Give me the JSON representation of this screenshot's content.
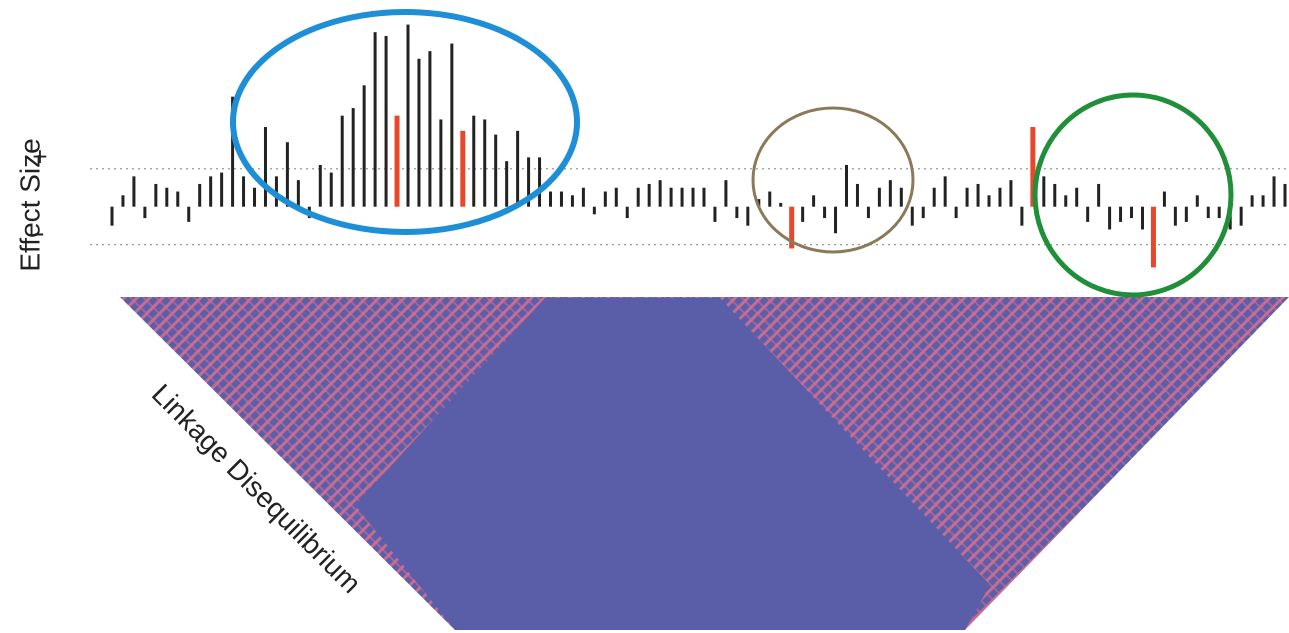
{
  "chart_data": {
    "type": "bar",
    "ylabel": "Effect Size",
    "heatmap_label": "Linkage Disequilibrium",
    "values": [
      -0.5,
      0.3,
      0.8,
      -0.3,
      0.6,
      0.5,
      0.4,
      -0.4,
      0.6,
      0.8,
      0.9,
      2.9,
      0.8,
      0.5,
      2.1,
      0.8,
      1.7,
      0.7,
      -0.3,
      1.1,
      0.9,
      2.4,
      2.6,
      3.2,
      4.6,
      4.5,
      2.4,
      4.8,
      3.9,
      4.1,
      2.3,
      4.3,
      2.0,
      2.4,
      2.3,
      1.9,
      1.2,
      2.0,
      1.3,
      1.3,
      0.4,
      0.4,
      0.3,
      0.5,
      -0.2,
      0.4,
      0.5,
      -0.3,
      0.5,
      0.6,
      0.7,
      0.5,
      0.5,
      0.5,
      0.5,
      -0.4,
      0.7,
      -0.3,
      -0.5,
      0.2,
      0.4,
      0.1,
      -1.1,
      -0.4,
      0.3,
      -0.3,
      -0.7,
      1.1,
      0.6,
      -0.3,
      0.5,
      0.7,
      0.5,
      -0.5,
      -0.3,
      0.5,
      0.8,
      -0.3,
      0.5,
      0.6,
      0.3,
      0.5,
      0.7,
      -0.5,
      2.1,
      0.8,
      0.6,
      0.3,
      0.5,
      -0.4,
      0.6,
      -0.6,
      -0.4,
      -0.3,
      -0.6,
      -1.6,
      0.4,
      -0.5,
      -0.4,
      0.3,
      -0.3,
      -0.3,
      -0.6,
      -0.5,
      0.3,
      0.3,
      0.8,
      0.6
    ],
    "colors": [
      "#222",
      "#222",
      "#222",
      "#222",
      "#222",
      "#222",
      "#222",
      "#222",
      "#222",
      "#222",
      "#222",
      "#222",
      "#222",
      "#222",
      "#222",
      "#222",
      "#222",
      "#222",
      "#222",
      "#222",
      "#222",
      "#222",
      "#222",
      "#222",
      "#222",
      "#222",
      "#e8472a",
      "#222",
      "#222",
      "#222",
      "#222",
      "#222",
      "#e8472a",
      "#222",
      "#222",
      "#222",
      "#222",
      "#222",
      "#222",
      "#222",
      "#222",
      "#222",
      "#222",
      "#222",
      "#222",
      "#222",
      "#222",
      "#222",
      "#222",
      "#222",
      "#222",
      "#222",
      "#222",
      "#222",
      "#222",
      "#222",
      "#222",
      "#222",
      "#222",
      "#222",
      "#222",
      "#222",
      "#e8472a",
      "#222",
      "#222",
      "#222",
      "#222",
      "#222",
      "#222",
      "#222",
      "#222",
      "#222",
      "#222",
      "#222",
      "#222",
      "#222",
      "#222",
      "#222",
      "#222",
      "#222",
      "#222",
      "#222",
      "#222",
      "#222",
      "#e8472a",
      "#222",
      "#222",
      "#222",
      "#222",
      "#222",
      "#222",
      "#222",
      "#222",
      "#222",
      "#222",
      "#e8472a",
      "#222",
      "#222",
      "#222",
      "#222",
      "#222",
      "#222",
      "#222",
      "#222",
      "#222",
      "#222",
      "#222",
      "#222"
    ],
    "ylim": [
      -1.8,
      5
    ],
    "yticks": [
      {
        "value": 1,
        "label": "+"
      },
      {
        "value": -1,
        "label": "-"
      }
    ],
    "grid": true
  }
}
